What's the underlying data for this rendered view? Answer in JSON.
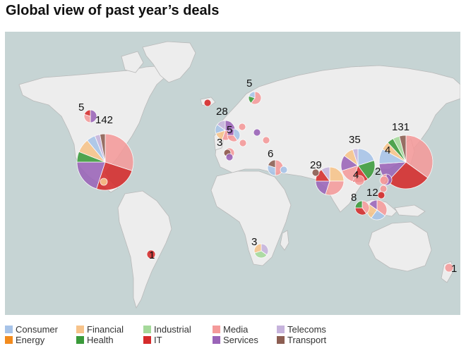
{
  "title": "Global view of past year’s deals",
  "colors": {
    "ocean": "#c6d4d4",
    "land": "#ededed",
    "border": "#b9b9b9"
  },
  "legend": [
    {
      "label": "Consumer",
      "color": "#a7c3e8"
    },
    {
      "label": "Energy",
      "color": "#f28b1e"
    },
    {
      "label": "Financial",
      "color": "#f7c38a"
    },
    {
      "label": "Health",
      "color": "#3a9a3a"
    },
    {
      "label": "Industrial",
      "color": "#a5d99a"
    },
    {
      "label": "IT",
      "color": "#d52b2b"
    },
    {
      "label": "Media",
      "color": "#f49a9a"
    },
    {
      "label": "Services",
      "color": "#9a64b8"
    },
    {
      "label": "Telecoms",
      "color": "#c6b3dc"
    },
    {
      "label": "Transport",
      "color": "#8c5e52"
    }
  ],
  "regions": [
    {
      "count": "142",
      "slices": {
        "Media": 30,
        "IT": 25,
        "Services": 20,
        "Health": 6,
        "Financial": 8,
        "Consumer": 5,
        "Telecoms": 3,
        "Transport": 3
      }
    },
    {
      "count": "131",
      "slices": {
        "Media": 35,
        "IT": 27,
        "Services": 12,
        "Consumer": 9,
        "Financial": 5,
        "Health": 4,
        "Industrial": 4,
        "Transport": 4
      }
    },
    {
      "count": "35",
      "slices": {
        "Consumer": 20,
        "Health": 20,
        "IT": 15,
        "Media": 15,
        "Services": 15,
        "Financial": 10,
        "Telecoms": 5
      }
    },
    {
      "count": "29",
      "slices": {
        "Financial": 25,
        "Media": 30,
        "Services": 20,
        "IT": 15,
        "Telecoms": 10
      }
    },
    {
      "count": "28",
      "slices": {
        "Services": 30,
        "Media": 25,
        "Financial": 15,
        "Consumer": 15,
        "Telecoms": 15
      }
    },
    {
      "count": "12",
      "slices": {
        "Media": 35,
        "Consumer": 25,
        "Financial": 25,
        "Services": 15
      }
    },
    {
      "count": "8",
      "slices": {
        "Media": 40,
        "IT": 35,
        "Health": 25
      }
    },
    {
      "count": "6",
      "slices": {
        "Media": 50,
        "Consumer": 30,
        "Transport": 20
      }
    },
    {
      "count": "5",
      "slices": {
        "Media": 60,
        "Health": 20,
        "Consumer": 20
      }
    },
    {
      "count": "5",
      "slices": {
        "Services": 50,
        "Media": 30,
        "IT": 20
      }
    },
    {
      "count": "5",
      "slices": {
        "Consumer": 40,
        "Media": 35,
        "Services": 25
      }
    },
    {
      "count": "4",
      "slices": {
        "Services": 60,
        "Media": 40
      }
    },
    {
      "count": "4",
      "slices": {
        "Media": 100
      }
    },
    {
      "count": "3",
      "slices": {
        "Media": 100
      }
    },
    {
      "count": "3",
      "slices": {
        "Telecoms": 35,
        "Industrial": 35,
        "Financial": 30
      }
    },
    {
      "count": "2",
      "slices": {
        "Media": 100
      }
    },
    {
      "count": "1",
      "slices": {
        "IT": 100
      }
    },
    {
      "count": "1",
      "slices": {
        "Media": 100
      }
    }
  ],
  "extra_dots": [
    {
      "category": "IT"
    },
    {
      "category": "Financial"
    },
    {
      "category": "Media"
    },
    {
      "category": "Services"
    },
    {
      "category": "Media"
    },
    {
      "category": "Transport"
    },
    {
      "category": "Services"
    },
    {
      "category": "Media"
    },
    {
      "category": "Consumer"
    },
    {
      "category": "Media"
    },
    {
      "category": "IT"
    },
    {
      "category": "Transport"
    }
  ]
}
